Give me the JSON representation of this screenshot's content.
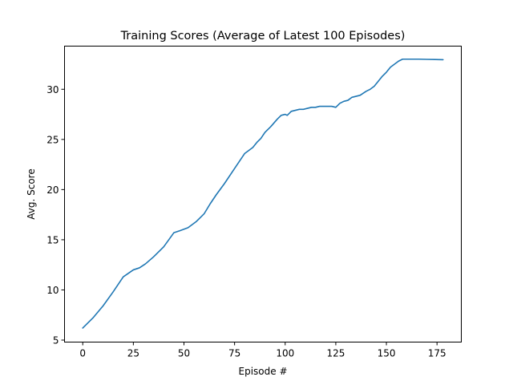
{
  "chart_data": {
    "type": "line",
    "title": "Training Scores (Average of Latest 100 Episodes)",
    "xlabel": "Episode #",
    "ylabel": "Avg. Score",
    "xlim": [
      -9,
      187
    ],
    "ylim": [
      4.8,
      34.3
    ],
    "xticks": [
      0,
      25,
      50,
      75,
      100,
      125,
      150,
      175
    ],
    "yticks": [
      5,
      10,
      15,
      20,
      25,
      30
    ],
    "grid": false,
    "legend": "none",
    "colors": {
      "line": "#1f77b4"
    },
    "series": [
      {
        "x": [
          0,
          5,
          10,
          15,
          20,
          25,
          28,
          31,
          35,
          40,
          45,
          48,
          52,
          56,
          58,
          60,
          63,
          66,
          70,
          75,
          80,
          82,
          84,
          86,
          88,
          90,
          93,
          96,
          98,
          100,
          101,
          103,
          105,
          107,
          109,
          111,
          113,
          115,
          117,
          119,
          121,
          123,
          125,
          127,
          129,
          131,
          133,
          135,
          137,
          140,
          142,
          144,
          146,
          148,
          150,
          152,
          154,
          156,
          158,
          160,
          163,
          166,
          170,
          174,
          178
        ],
        "y": [
          6.2,
          7.2,
          8.4,
          9.8,
          11.3,
          12.0,
          12.2,
          12.6,
          13.3,
          14.3,
          15.7,
          15.9,
          16.2,
          16.8,
          17.2,
          17.6,
          18.6,
          19.5,
          20.6,
          22.1,
          23.6,
          23.9,
          24.2,
          24.7,
          25.1,
          25.7,
          26.3,
          27.0,
          27.4,
          27.5,
          27.4,
          27.8,
          27.9,
          28.0,
          28.0,
          28.1,
          28.2,
          28.2,
          28.3,
          28.3,
          28.3,
          28.3,
          28.2,
          28.6,
          28.8,
          28.9,
          29.2,
          29.3,
          29.4,
          29.8,
          30.0,
          30.3,
          30.8,
          31.3,
          31.7,
          32.2,
          32.5,
          32.8,
          33.0,
          33.0,
          33.0,
          33.0,
          32.98,
          32.97,
          32.95
        ]
      }
    ]
  }
}
